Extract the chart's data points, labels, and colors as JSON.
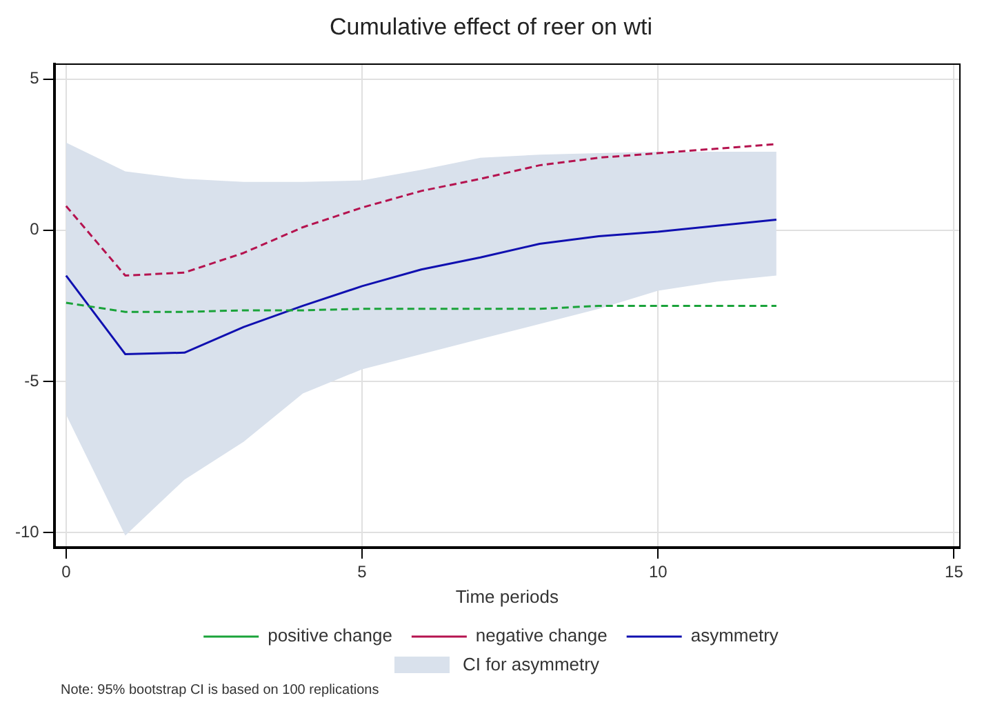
{
  "chart_data": {
    "type": "line",
    "title": "Cumulative effect of reer on wti",
    "xlabel": "Time periods",
    "x": [
      0,
      1,
      2,
      3,
      4,
      5,
      6,
      7,
      8,
      9,
      10,
      11,
      12
    ],
    "series": [
      {
        "name": "positive change",
        "color": "#1aa33a",
        "line_style": "dashed",
        "values": [
          -2.4,
          -2.7,
          -2.7,
          -2.65,
          -2.65,
          -2.6,
          -2.6,
          -2.6,
          -2.6,
          -2.5,
          -2.5,
          -2.5,
          -2.5
        ]
      },
      {
        "name": "negative change",
        "color": "#b5134f",
        "line_style": "dashed",
        "values": [
          0.8,
          -1.5,
          -1.4,
          -0.75,
          0.1,
          0.75,
          1.3,
          1.7,
          2.15,
          2.4,
          2.55,
          2.7,
          2.85
        ]
      },
      {
        "name": "asymmetry",
        "color": "#1010b0",
        "line_style": "solid",
        "values": [
          -1.5,
          -4.1,
          -4.05,
          -3.2,
          -2.5,
          -1.85,
          -1.3,
          -0.9,
          -0.45,
          -0.2,
          -0.05,
          0.15,
          0.35
        ],
        "lower": [
          -6.1,
          -10.1,
          -8.25,
          -7.0,
          -5.4,
          -4.6,
          -4.1,
          -3.6,
          -3.1,
          -2.6,
          -2.0,
          -1.7,
          -1.5
        ],
        "upper": [
          2.9,
          1.95,
          1.7,
          1.6,
          1.6,
          1.65,
          2.0,
          2.4,
          2.5,
          2.55,
          2.6,
          2.6,
          2.6
        ]
      }
    ],
    "xlim": [
      -0.2,
      15.1
    ],
    "xticks": [
      0,
      5,
      10,
      15
    ],
    "ylim": [
      -10.5,
      5.5
    ],
    "yticks": [
      -10,
      -5,
      0,
      5
    ],
    "grid": true,
    "legend": "bottom",
    "marker": "none",
    "annotations": [
      "CI for asymmetry",
      "Note: 95% bootstrap CI is based on 100 replications"
    ]
  }
}
